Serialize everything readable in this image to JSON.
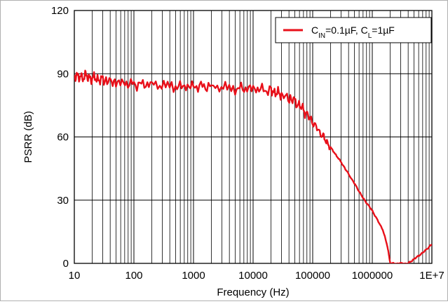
{
  "chart_data": {
    "type": "line",
    "x_scale": "log",
    "xlim": [
      10,
      10000000
    ],
    "ylim": [
      0,
      120
    ],
    "xlabel": "Frequency (Hz)",
    "ylabel": "PSRR (dB)",
    "x_tick_labels": [
      "10",
      "100",
      "1000",
      "10000",
      "100000",
      "1000000",
      "1E+7"
    ],
    "x_tick_values": [
      10,
      100,
      1000,
      10000,
      100000,
      1000000,
      10000000
    ],
    "y_tick_labels": [
      "0",
      "30",
      "60",
      "90",
      "120"
    ],
    "y_tick_values": [
      0,
      30,
      60,
      90,
      120
    ],
    "grid": true,
    "legend_position": "top-right",
    "series": [
      {
        "label_parts": [
          {
            "text": "C",
            "sub": false
          },
          {
            "text": "IN",
            "sub": true
          },
          {
            "text": "=0.1µF, C",
            "sub": false
          },
          {
            "text": "L",
            "sub": true
          },
          {
            "text": "=1µF",
            "sub": false
          }
        ],
        "color": "#e8101a",
        "x": [
          10,
          12,
          15,
          18,
          20,
          30,
          50,
          100,
          200,
          500,
          1000,
          2000,
          5000,
          10000,
          20000,
          30000,
          50000,
          70000,
          100000,
          150000,
          200000,
          300000,
          500000,
          700000,
          1000000,
          1500000,
          1800000,
          2000000,
          4000000,
          5000000,
          7000000,
          10000000
        ],
        "y": [
          90,
          88,
          89,
          88,
          88,
          87,
          86,
          85,
          85,
          84,
          84,
          84,
          83,
          83,
          82,
          80,
          77,
          73,
          67,
          60,
          55,
          48,
          38,
          31,
          25,
          16,
          8,
          0,
          0,
          2,
          5,
          9
        ]
      }
    ]
  }
}
